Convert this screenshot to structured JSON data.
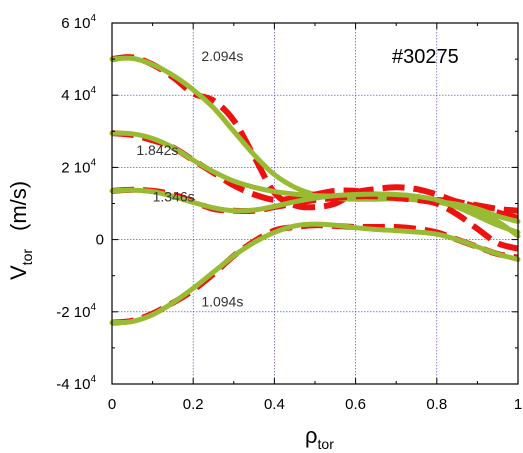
{
  "chart_data": {
    "type": "line",
    "shot_label": "#30275",
    "xlabel": {
      "main": "ρ",
      "sub": "tor"
    },
    "ylabel": {
      "main": "V",
      "sub": "tor",
      "unit": "(m/s)"
    },
    "xlim": [
      0,
      1
    ],
    "ylim": [
      -40000,
      60000
    ],
    "x_ticks": [
      "0",
      "0.2",
      "0.4",
      "0.6",
      "0.8",
      "1"
    ],
    "y_ticks": [
      {
        "value": 60000,
        "mant": "6 10",
        "exp": "4"
      },
      {
        "value": 40000,
        "mant": "4 10",
        "exp": "4"
      },
      {
        "value": 20000,
        "mant": "2 10",
        "exp": "4"
      },
      {
        "value": 0,
        "mant": "0",
        "exp": ""
      },
      {
        "value": -20000,
        "mant": "-2 10",
        "exp": "4"
      },
      {
        "value": -40000,
        "mant": "-4 10",
        "exp": "4"
      }
    ],
    "grid": true,
    "colors": {
      "measured": "#ee1111",
      "fit": "#99bb33",
      "grid": "#3333cc"
    },
    "profiles": [
      {
        "label": "2.094s",
        "label_x": 0.22,
        "label_y": 49500,
        "measured": {
          "x": [
            0,
            0.05,
            0.1,
            0.15,
            0.2,
            0.25,
            0.3,
            0.35,
            0.4,
            0.45,
            0.5,
            0.55,
            0.6,
            0.65,
            0.7,
            0.75,
            0.8,
            0.85,
            0.9,
            0.95,
            1.0
          ],
          "y": [
            50000,
            50500,
            48500,
            45000,
            40500,
            38500,
            33000,
            23000,
            13000,
            9500,
            9000,
            10000,
            13000,
            14000,
            14500,
            14000,
            12500,
            10500,
            9500,
            8500,
            8000
          ]
        },
        "fit": {
          "x": [
            0,
            0.05,
            0.1,
            0.15,
            0.2,
            0.25,
            0.3,
            0.35,
            0.4,
            0.45,
            0.5,
            0.55,
            0.6,
            0.65,
            0.7,
            0.75,
            0.8,
            0.85,
            0.9,
            0.95,
            1.0
          ],
          "y": [
            50000,
            50200,
            48500,
            45500,
            41500,
            36500,
            30000,
            23500,
            18000,
            14500,
            12500,
            11500,
            11200,
            11200,
            11300,
            11000,
            10500,
            9000,
            7500,
            5000,
            1000
          ]
        }
      },
      {
        "label": "1.842s",
        "label_x": 0.06,
        "label_y": 23500,
        "measured": {
          "x": [
            0,
            0.05,
            0.1,
            0.15,
            0.2,
            0.25,
            0.3,
            0.35,
            0.4,
            0.45,
            0.5,
            0.55,
            0.6,
            0.65,
            0.7,
            0.75,
            0.8,
            0.85,
            0.9,
            0.95,
            1.0
          ],
          "y": [
            29500,
            29000,
            27500,
            25500,
            22000,
            18500,
            15000,
            12500,
            11000,
            11500,
            12500,
            13500,
            13500,
            12500,
            12000,
            11500,
            11000,
            10500,
            9000,
            7500,
            6000
          ]
        },
        "fit": {
          "x": [
            0,
            0.05,
            0.1,
            0.15,
            0.2,
            0.25,
            0.3,
            0.35,
            0.4,
            0.45,
            0.5,
            0.55,
            0.6,
            0.65,
            0.7,
            0.75,
            0.8,
            0.85,
            0.9,
            0.95,
            1.0
          ],
          "y": [
            29500,
            29300,
            28000,
            25500,
            22000,
            18800,
            16200,
            14500,
            13300,
            12600,
            12200,
            12000,
            11800,
            11600,
            11400,
            11000,
            10500,
            9800,
            8500,
            6500,
            5000
          ]
        }
      },
      {
        "label": "1.346s",
        "label_x": 0.1,
        "label_y": 10500,
        "measured": {
          "x": [
            0,
            0.05,
            0.1,
            0.15,
            0.2,
            0.25,
            0.3,
            0.35,
            0.4,
            0.45,
            0.5,
            0.55,
            0.6,
            0.65,
            0.7,
            0.75,
            0.8,
            0.85,
            0.9,
            0.95,
            1.0
          ],
          "y": [
            13500,
            13800,
            13500,
            12500,
            10500,
            8500,
            8000,
            8000,
            9000,
            10000,
            11000,
            11500,
            12000,
            12000,
            11500,
            11000,
            10000,
            7000,
            3000,
            -1000,
            -2500
          ]
        },
        "fit": {
          "x": [
            0,
            0.05,
            0.1,
            0.15,
            0.2,
            0.25,
            0.3,
            0.35,
            0.4,
            0.45,
            0.5,
            0.55,
            0.6,
            0.65,
            0.7,
            0.75,
            0.8,
            0.85,
            0.9,
            0.95,
            1.0
          ],
          "y": [
            13500,
            13700,
            13300,
            12000,
            10300,
            8800,
            8000,
            8200,
            9200,
            10500,
            11500,
            12200,
            12500,
            12600,
            12500,
            12000,
            11000,
            9000,
            6500,
            4000,
            2000
          ]
        }
      },
      {
        "label": "1.094s",
        "label_x": 0.22,
        "label_y": -18500,
        "measured": {
          "x": [
            0,
            0.05,
            0.1,
            0.15,
            0.2,
            0.25,
            0.3,
            0.35,
            0.4,
            0.45,
            0.5,
            0.55,
            0.6,
            0.65,
            0.7,
            0.75,
            0.8,
            0.85,
            0.9,
            0.95,
            1.0
          ],
          "y": [
            -23000,
            -22500,
            -20500,
            -17500,
            -14000,
            -9500,
            -4500,
            -500,
            2500,
            3500,
            4000,
            3800,
            3500,
            3500,
            3500,
            3000,
            2000,
            0,
            -2000,
            -4000,
            -5000
          ]
        },
        "fit": {
          "x": [
            0,
            0.05,
            0.1,
            0.15,
            0.2,
            0.25,
            0.3,
            0.35,
            0.4,
            0.45,
            0.5,
            0.55,
            0.6,
            0.65,
            0.7,
            0.75,
            0.8,
            0.85,
            0.9,
            0.95,
            1.0
          ],
          "y": [
            -23000,
            -22700,
            -20800,
            -17500,
            -13500,
            -9000,
            -4500,
            -800,
            2000,
            3800,
            4300,
            4000,
            3300,
            2800,
            2500,
            2100,
            1500,
            0,
            -2000,
            -4000,
            -5500
          ]
        }
      }
    ]
  }
}
